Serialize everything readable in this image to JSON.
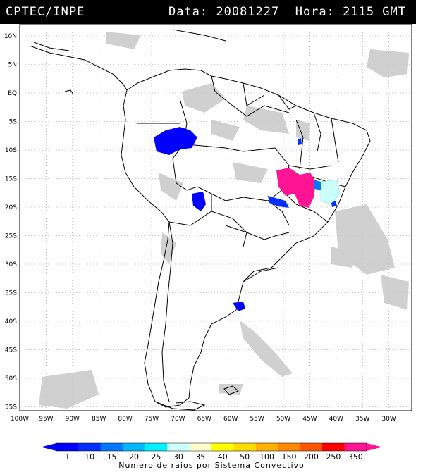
{
  "header": {
    "source": "CPTEC/INPE",
    "datetime": "Data: 20081227  Hora: 2115 GMT"
  },
  "lat_labels": [
    "10N",
    "5N",
    "EQ",
    "5S",
    "10S",
    "15S",
    "20S",
    "25S",
    "30S",
    "35S",
    "40S",
    "45S",
    "50S",
    "55S"
  ],
  "lon_labels": [
    "100W",
    "95W",
    "90W",
    "85W",
    "80W",
    "75W",
    "70W",
    "65W",
    "60W",
    "55W",
    "50W",
    "45W",
    "40W",
    "35W",
    "30W"
  ],
  "legend": {
    "title": "Numero de raios por Sistema Convectivo",
    "values": [
      "1",
      "10",
      "15",
      "20",
      "25",
      "30",
      "35",
      "40",
      "50",
      "100",
      "150",
      "200",
      "250",
      "350"
    ],
    "colors": [
      "#0000ff",
      "#0030ff",
      "#0078ff",
      "#00b8ff",
      "#00f0ff",
      "#ccffff",
      "#ffffcc",
      "#ffff00",
      "#ffdd00",
      "#ffb000",
      "#ff8800",
      "#ff5500",
      "#ff0000",
      "#ff1493"
    ]
  }
}
